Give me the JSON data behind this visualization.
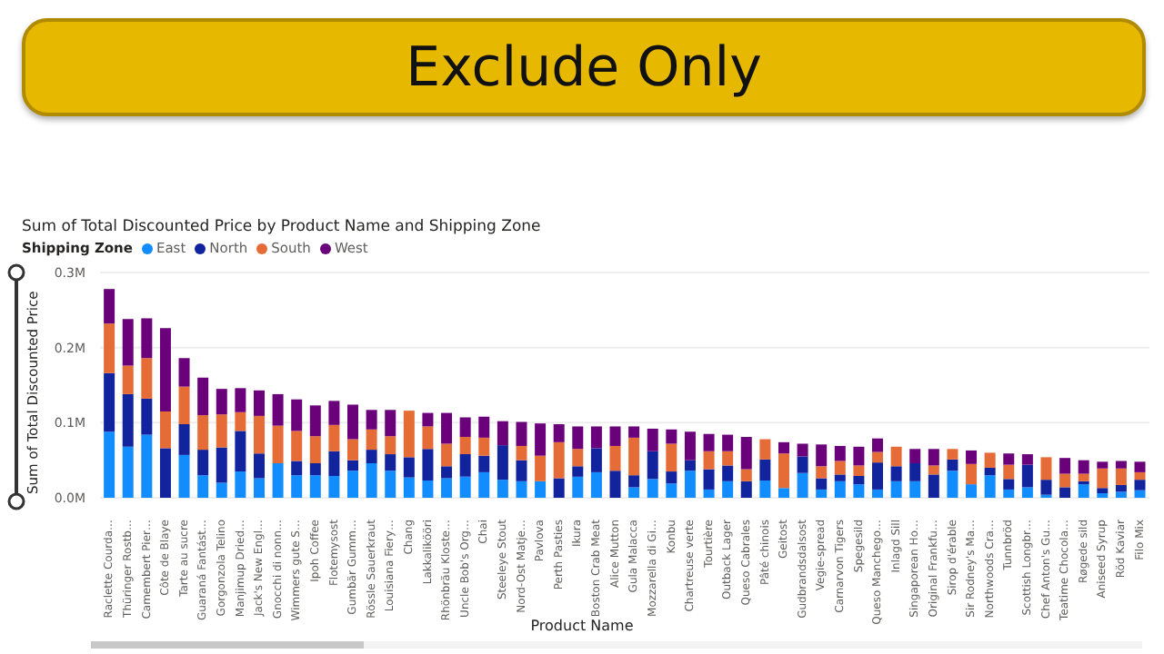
{
  "chart_data": {
    "type": "bar",
    "title": "Exclude Only",
    "subtitle": "Sum of Total Discounted Price by Product Name and Shipping Zone",
    "xlabel": "Product Name",
    "ylabel": "Sum of Total Discounted Price",
    "legend_title": "Shipping Zone",
    "legend": "top left",
    "grid": "y",
    "stacked": true,
    "categories": [
      "Raclette Courda…",
      "Thüringer Rostb…",
      "Camembert Pier…",
      "Côte de Blaye",
      "Tarte au sucre",
      "Guaraná Fantást…",
      "Gorgonzola Telino",
      "Manjimup Dried…",
      "Jack's New Engl…",
      "Gnocchi di nonn…",
      "Wimmers gute S…",
      "Ipoh Coffee",
      "Flotemysost",
      "Gumbär Gumm…",
      "Rössle Sauerkraut",
      "Louisiana Fiery…",
      "Chang",
      "Lakkalikööri",
      "Rhönbräu Kloste…",
      "Uncle Bob's Org…",
      "Chai",
      "Steeleye Stout",
      "Nord-Ost Matje…",
      "Pavlova",
      "Perth Pasties",
      "Ikura",
      "Boston Crab Meat",
      "Alice Mutton",
      "Gula Malacca",
      "Mozzarella di Gi…",
      "Konbu",
      "Chartreuse verte",
      "Tourtière",
      "Outback Lager",
      "Queso Cabrales",
      "Pâté chinois",
      "Geitost",
      "Gudbrandsdalsost",
      "Vegie-spread",
      "Carnarvon Tigers",
      "Spegesild",
      "Queso Manchego…",
      "Inlagd Sill",
      "Singaporean Ho…",
      "Original Frankfu…",
      "Sirop d'érable",
      "Sir Rodney's Ma…",
      "Northwoods Cra…",
      "Tunnbröd",
      "Scottish Longbr…",
      "Chef Anton's Gu…",
      "Teatime Chocola…",
      "Røgede sild",
      "Aniseed Syrup",
      "Röd Kaviar",
      "Filo Mix"
    ],
    "ylim": [
      0,
      0.3
    ],
    "yticks": [
      {
        "value": 0,
        "label": "0.0M"
      },
      {
        "value": 0.1,
        "label": "0.1M"
      },
      {
        "value": 0.2,
        "label": "0.2M"
      },
      {
        "value": 0.3,
        "label": "0.3M"
      }
    ],
    "series": [
      {
        "name": "East",
        "color": "#118dff",
        "values": [
          0.088,
          0.068,
          0.084,
          0,
          0.057,
          0.03,
          0.02,
          0.035,
          0.026,
          0.046,
          0.03,
          0.03,
          0.029,
          0.036,
          0.046,
          0.036,
          0.027,
          0.023,
          0.026,
          0.028,
          0.034,
          0.024,
          0.022,
          0.022,
          0,
          0.028,
          0.034,
          0,
          0.014,
          0.025,
          0.019,
          0.036,
          0.011,
          0.022,
          0,
          0.023,
          0.013,
          0.033,
          0.011,
          0.022,
          0.018,
          0.011,
          0.022,
          0.022,
          0,
          0.036,
          0.018,
          0.03,
          0.011,
          0.014,
          0.004,
          0,
          0.018,
          0.006,
          0.008,
          0.01
        ]
      },
      {
        "name": "North",
        "color": "#12239e",
        "values": [
          0.078,
          0.07,
          0.048,
          0.066,
          0.041,
          0.034,
          0.047,
          0.054,
          0.033,
          0,
          0.019,
          0.016,
          0.033,
          0.014,
          0.018,
          0.022,
          0.027,
          0.042,
          0.016,
          0.03,
          0.022,
          0.046,
          0.028,
          0,
          0.026,
          0.014,
          0.032,
          0.036,
          0.016,
          0.037,
          0.016,
          0.014,
          0.027,
          0.021,
          0.022,
          0.028,
          0,
          0.022,
          0.015,
          0.009,
          0.011,
          0.036,
          0.02,
          0.024,
          0.031,
          0.015,
          0,
          0.01,
          0.014,
          0.03,
          0.02,
          0.014,
          0.004,
          0.007,
          0.009,
          0.014
        ]
      },
      {
        "name": "South",
        "color": "#e66c37",
        "values": [
          0.066,
          0.038,
          0.054,
          0.049,
          0.05,
          0.046,
          0.044,
          0.025,
          0.05,
          0.05,
          0.04,
          0.036,
          0.035,
          0.028,
          0.027,
          0.024,
          0.062,
          0.03,
          0.03,
          0.023,
          0.024,
          0,
          0.019,
          0.034,
          0.048,
          0.023,
          0,
          0.033,
          0.05,
          0,
          0.037,
          0,
          0.024,
          0.019,
          0.016,
          0.027,
          0.046,
          0,
          0.016,
          0.018,
          0.014,
          0.014,
          0.026,
          0,
          0.012,
          0.014,
          0.027,
          0.02,
          0.019,
          0,
          0.03,
          0.018,
          0.01,
          0.026,
          0.022,
          0.01
        ]
      },
      {
        "name": "West",
        "color": "#6b007b",
        "values": [
          0.046,
          0.062,
          0.053,
          0.111,
          0.038,
          0.05,
          0.034,
          0.032,
          0.034,
          0.042,
          0.042,
          0.041,
          0.032,
          0.046,
          0.026,
          0.035,
          0,
          0.018,
          0.041,
          0.026,
          0.028,
          0.032,
          0.032,
          0.043,
          0.024,
          0.03,
          0.029,
          0.026,
          0.015,
          0.03,
          0.019,
          0.038,
          0.023,
          0.022,
          0.043,
          0,
          0.015,
          0.017,
          0.029,
          0.02,
          0.025,
          0.018,
          0,
          0.019,
          0.022,
          0,
          0.018,
          0,
          0.015,
          0.014,
          0,
          0.021,
          0.018,
          0.009,
          0.01,
          0.014
        ]
      }
    ]
  }
}
